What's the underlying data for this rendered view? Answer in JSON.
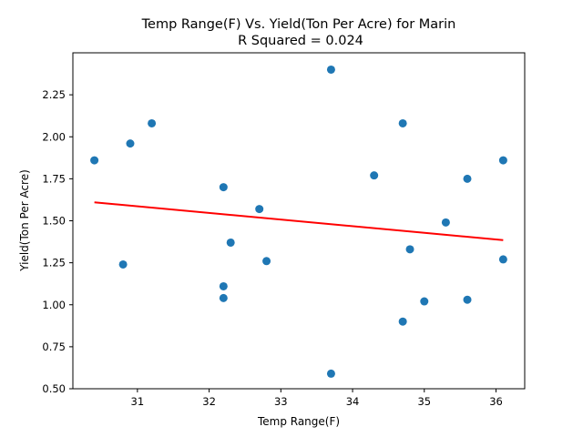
{
  "chart_data": {
    "type": "scatter",
    "title": "Temp Range(F) Vs. Yield(Ton Per Acre) for Marin",
    "subtitle": "R Squared =  0.024",
    "xlabel": "Temp Range(F)",
    "ylabel": "Yield(Ton Per Acre)",
    "xlim": [
      30.1,
      36.4
    ],
    "ylim": [
      0.5,
      2.5
    ],
    "xticks": [
      "31",
      "32",
      "33",
      "34",
      "35",
      "36"
    ],
    "yticks": [
      "0.50",
      "0.75",
      "1.00",
      "1.25",
      "1.50",
      "1.75",
      "2.00",
      "2.25"
    ],
    "grid": false,
    "points_color": "#1f77b4",
    "trendline_color": "#ff0000",
    "trendline": {
      "x": [
        30.4,
        36.1
      ],
      "y": [
        1.61,
        1.385
      ]
    },
    "points": [
      {
        "x": 30.4,
        "y": 1.86
      },
      {
        "x": 30.8,
        "y": 1.24
      },
      {
        "x": 30.9,
        "y": 1.96
      },
      {
        "x": 31.2,
        "y": 2.08
      },
      {
        "x": 32.2,
        "y": 1.7
      },
      {
        "x": 32.2,
        "y": 1.11
      },
      {
        "x": 32.2,
        "y": 1.04
      },
      {
        "x": 32.3,
        "y": 1.37
      },
      {
        "x": 32.7,
        "y": 1.57
      },
      {
        "x": 32.8,
        "y": 1.26
      },
      {
        "x": 33.7,
        "y": 2.4
      },
      {
        "x": 33.7,
        "y": 0.59
      },
      {
        "x": 34.3,
        "y": 1.77
      },
      {
        "x": 34.7,
        "y": 2.08
      },
      {
        "x": 34.7,
        "y": 0.9
      },
      {
        "x": 34.8,
        "y": 1.33
      },
      {
        "x": 35.0,
        "y": 1.02
      },
      {
        "x": 35.3,
        "y": 1.49
      },
      {
        "x": 35.6,
        "y": 1.75
      },
      {
        "x": 35.6,
        "y": 1.03
      },
      {
        "x": 36.1,
        "y": 1.86
      },
      {
        "x": 36.1,
        "y": 1.27
      }
    ]
  }
}
